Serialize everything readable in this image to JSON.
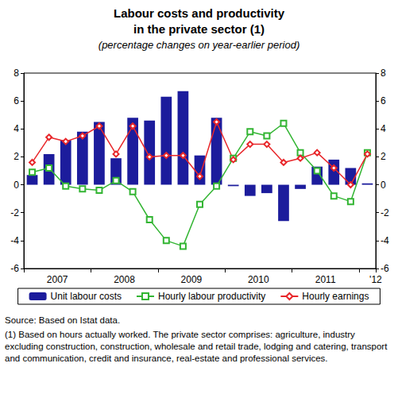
{
  "chart_data": {
    "type": "bar",
    "title": [
      "Labour costs and productivity",
      "in the private sector (1)"
    ],
    "subtitle": "(percentage changes on year-earlier period)",
    "categories": [
      null,
      "2007",
      null,
      null,
      null,
      "2008",
      null,
      null,
      null,
      "2009",
      null,
      null,
      null,
      "2010",
      null,
      null,
      null,
      "2011",
      null,
      null,
      "'12"
    ],
    "series": [
      {
        "name": "Unit labour costs",
        "type": "bar",
        "color": "#1c1c9c",
        "values": [
          0.7,
          2.2,
          3.2,
          3.8,
          4.5,
          1.9,
          4.8,
          4.6,
          6.3,
          6.7,
          2.1,
          4.8,
          -0.1,
          -0.8,
          -0.6,
          -2.6,
          -0.3,
          1.3,
          1.8,
          1.2,
          0.1
        ]
      },
      {
        "name": "Hourly labour productivity",
        "type": "line",
        "marker": "square",
        "color": "#33b533",
        "values": [
          0.9,
          1.2,
          -0.1,
          -0.3,
          -0.4,
          0.3,
          -0.5,
          -2.5,
          -4.0,
          -4.4,
          -1.4,
          -0.1,
          1.9,
          3.8,
          3.5,
          4.4,
          2.3,
          1.0,
          -0.8,
          -1.2,
          2.3
        ]
      },
      {
        "name": "Hourly earnings",
        "type": "line",
        "marker": "diamond",
        "color": "#e8262a",
        "values": [
          1.6,
          3.4,
          3.1,
          3.5,
          4.2,
          2.2,
          4.2,
          2.0,
          2.1,
          2.1,
          0.6,
          4.5,
          1.8,
          2.9,
          2.9,
          1.6,
          1.9,
          2.3,
          1.2,
          0.0,
          2.2
        ]
      }
    ],
    "ylim": [
      -6,
      8
    ],
    "yticks": [
      -6,
      -4,
      -2,
      0,
      2,
      4,
      6,
      8
    ],
    "grid": false,
    "legend": "bottom",
    "annotations": [
      "Source: Based on Istat data.",
      "(1) Based on hours actually worked. The private sector comprises: agriculture, industry excluding construction, construction, wholesale and retail trade, lodging and catering, transport and communication, credit and insurance, real-estate and professional services."
    ]
  }
}
